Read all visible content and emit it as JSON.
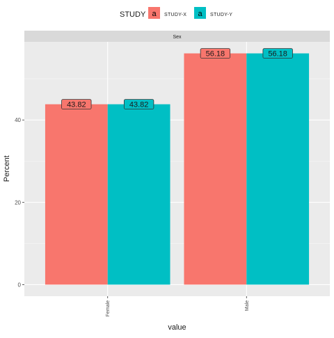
{
  "chart_data": {
    "type": "bar",
    "facet_label": "Sex",
    "categories": [
      "Female",
      "Male"
    ],
    "series": [
      {
        "name": "STUDY-X",
        "color": "#F8766D",
        "values": [
          43.82,
          56.18
        ]
      },
      {
        "name": "STUDY-Y",
        "color": "#00BFC4",
        "values": [
          43.82,
          56.18
        ]
      }
    ],
    "data_labels": [
      [
        "43.82",
        "56.18"
      ],
      [
        "43.82",
        "56.18"
      ]
    ],
    "xlabel": "value",
    "ylabel": "Percent",
    "ylim": [
      -2.81,
      58.99
    ],
    "y_ticks": [
      0,
      20,
      40
    ],
    "y_tick_labels": [
      "0",
      "20",
      "40"
    ],
    "legend": {
      "title": "STUDY",
      "key_glyph": "a",
      "position": "top"
    },
    "grid": true,
    "panel_color": "#EBEBEB",
    "strip_color": "#D9D9D9"
  }
}
